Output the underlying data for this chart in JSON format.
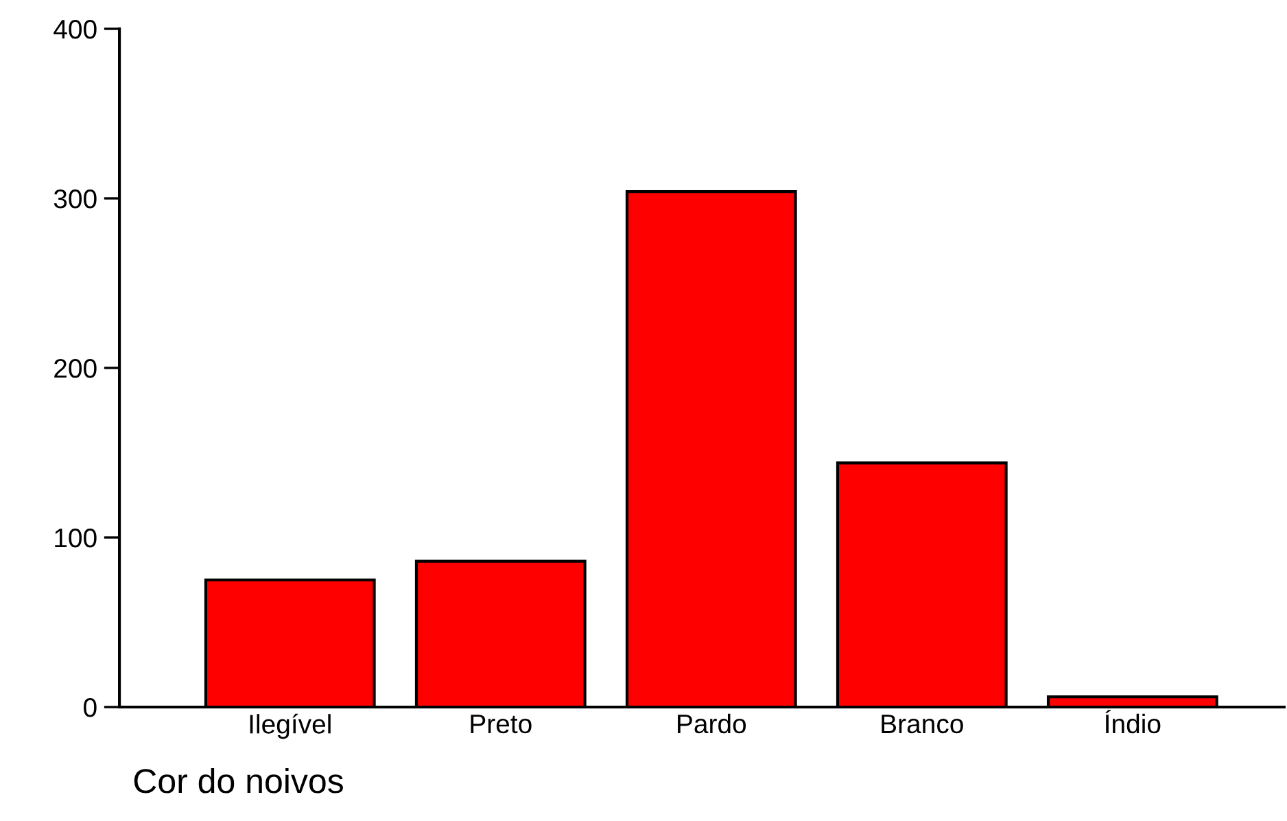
{
  "chart_data": {
    "type": "bar",
    "xlabel": "Cor do noivos",
    "categories": [
      "Ilegível",
      "Preto",
      "Pardo",
      "Branco",
      "Índio"
    ],
    "values": [
      75,
      86,
      304,
      144,
      6
    ],
    "color": "#ff0000",
    "ylim": [
      0,
      400
    ],
    "yticks": [
      0,
      100,
      200,
      300,
      400
    ],
    "grid": false,
    "legend": false
  }
}
